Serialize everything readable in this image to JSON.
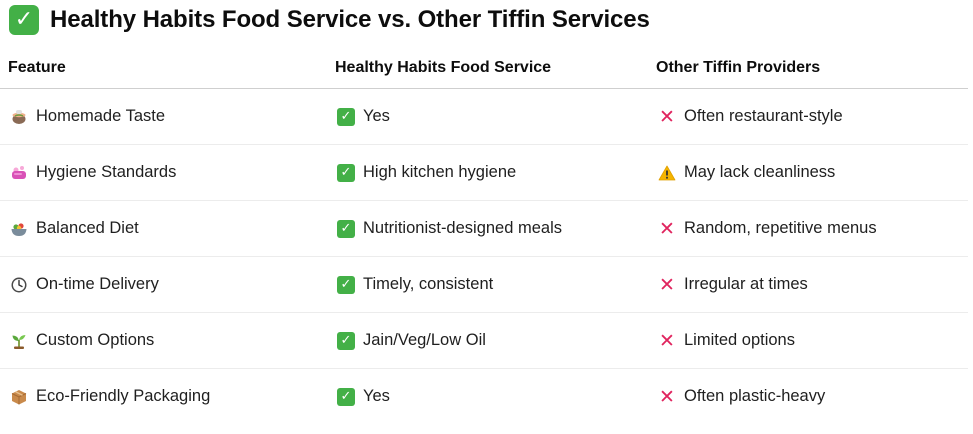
{
  "title": "Healthy Habits Food Service vs. Other Tiffin Services",
  "columns": [
    "Feature",
    "Healthy Habits Food Service",
    "Other Tiffin Providers"
  ],
  "rows": [
    {
      "feature": "Homemade Taste",
      "feature_icon": "cooking-pot-icon",
      "healthy": "Yes",
      "other": "Often restaurant-style",
      "other_icon": "cross-icon"
    },
    {
      "feature": "Hygiene Standards",
      "feature_icon": "soap-icon",
      "healthy": "High kitchen hygiene",
      "other": "May lack cleanliness",
      "other_icon": "warning-icon"
    },
    {
      "feature": "Balanced Diet",
      "feature_icon": "salad-bowl-icon",
      "healthy": "Nutritionist-designed meals",
      "other": "Random, repetitive menus",
      "other_icon": "cross-icon"
    },
    {
      "feature": "On-time Delivery",
      "feature_icon": "clock-icon",
      "healthy": "Timely, consistent",
      "other": "Irregular at times",
      "other_icon": "cross-icon"
    },
    {
      "feature": "Custom Options",
      "feature_icon": "seedling-icon",
      "healthy": "Jain/Veg/Low Oil",
      "other": "Limited options",
      "other_icon": "cross-icon"
    },
    {
      "feature": "Eco-Friendly Packaging",
      "feature_icon": "package-icon",
      "healthy": "Yes",
      "other": "Often plastic-heavy",
      "other_icon": "cross-icon"
    }
  ],
  "colors": {
    "check_green": "#43b047",
    "cross_red": "#e0245e",
    "warning_yellow": "#f5b400",
    "text": "#1f1f1f",
    "border": "#e5e5e5"
  }
}
